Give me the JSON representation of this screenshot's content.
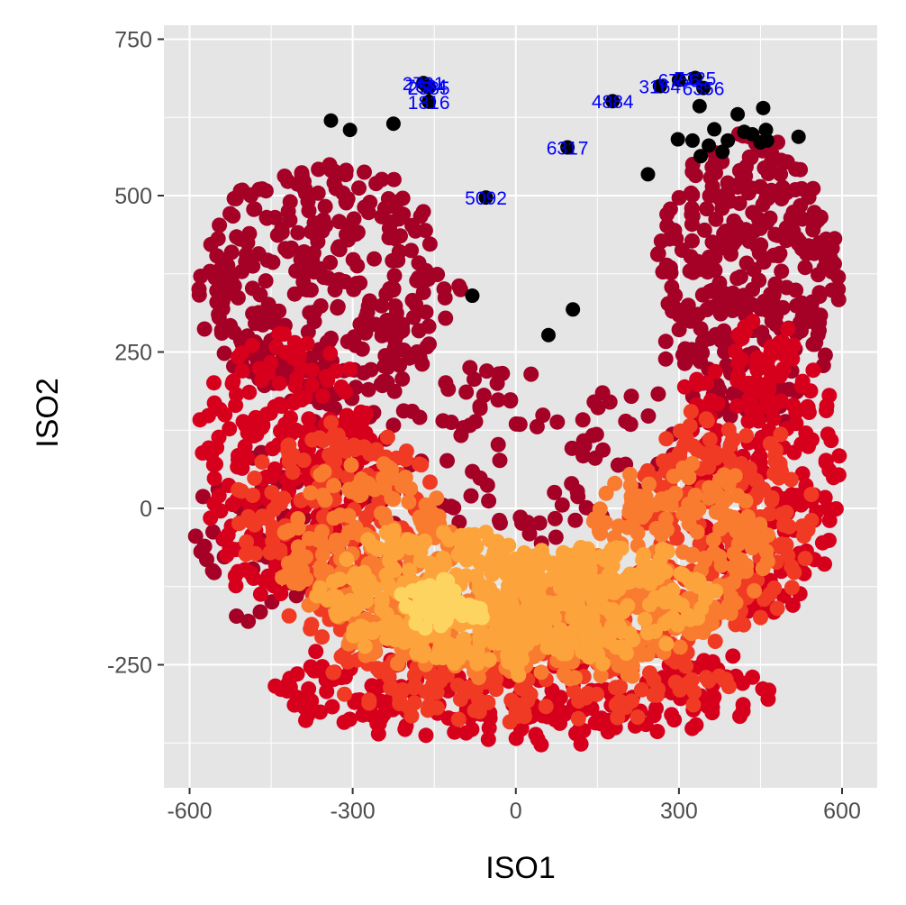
{
  "chart_data": {
    "type": "scatter",
    "title": "",
    "xlabel": "ISO1",
    "ylabel": "ISO2",
    "xlim": [
      -600,
      600
    ],
    "ylim": [
      -250,
      750
    ],
    "x_ticks": [
      "-600",
      "-300",
      "0",
      "300",
      "600"
    ],
    "y_ticks": [
      "-250",
      "0",
      "250",
      "500",
      "750"
    ],
    "x_tick_values": [
      -600,
      -300,
      0,
      300,
      600
    ],
    "y_tick_values": [
      -250,
      0,
      250,
      500,
      750
    ],
    "grid": true,
    "background": "#e5e5e5",
    "density_palette": [
      "#a50026",
      "#d7001c",
      "#f03a23",
      "#f97b30",
      "#fca33b",
      "#fed460"
    ],
    "outlier_color": "#000000",
    "label_color": "#0000ff",
    "density_layers": [
      {
        "color": "#a50026",
        "bands": [
          {
            "cx": -350,
            "cy": 360,
            "rx": 240,
            "ry": 190,
            "n": 330
          },
          {
            "cx": 430,
            "cy": 360,
            "rx": 170,
            "ry": 230,
            "n": 330
          },
          {
            "cx": -40,
            "cy": 90,
            "rx": 380,
            "ry": 140,
            "n": 120
          },
          {
            "cx": -460,
            "cy": -40,
            "rx": 130,
            "ry": 140,
            "n": 50
          }
        ]
      },
      {
        "color": "#d7001c",
        "bands": [
          {
            "cx": -420,
            "cy": 70,
            "rx": 170,
            "ry": 210,
            "n": 240
          },
          {
            "cx": 450,
            "cy": 60,
            "rx": 150,
            "ry": 230,
            "n": 240
          },
          {
            "cx": 0,
            "cy": -290,
            "rx": 470,
            "ry": 80,
            "n": 260
          }
        ]
      },
      {
        "color": "#f03a23",
        "bands": [
          {
            "cx": -330,
            "cy": -30,
            "rx": 190,
            "ry": 170,
            "n": 180
          },
          {
            "cx": 380,
            "cy": -20,
            "rx": 170,
            "ry": 180,
            "n": 180
          },
          {
            "cx": 20,
            "cy": -260,
            "rx": 380,
            "ry": 80,
            "n": 200
          }
        ]
      },
      {
        "color": "#f97b30",
        "bands": [
          {
            "cx": -270,
            "cy": -60,
            "rx": 160,
            "ry": 130,
            "n": 170
          },
          {
            "cx": 300,
            "cy": -60,
            "rx": 170,
            "ry": 130,
            "n": 170
          },
          {
            "cx": 20,
            "cy": -200,
            "rx": 330,
            "ry": 80,
            "n": 200
          }
        ]
      },
      {
        "color": "#fca33b",
        "bands": [
          {
            "cx": -160,
            "cy": -130,
            "rx": 200,
            "ry": 100,
            "n": 220
          },
          {
            "cx": 140,
            "cy": -140,
            "rx": 220,
            "ry": 80,
            "n": 200
          },
          {
            "cx": 0,
            "cy": -210,
            "rx": 230,
            "ry": 40,
            "n": 90
          }
        ]
      },
      {
        "color": "#fed460",
        "bands": [
          {
            "cx": -150,
            "cy": -150,
            "rx": 45,
            "ry": 35,
            "n": 50
          },
          {
            "cx": -110,
            "cy": -165,
            "rx": 50,
            "ry": 20,
            "n": 25
          }
        ]
      }
    ],
    "outliers": [
      {
        "x": -340,
        "y": 620,
        "label": ""
      },
      {
        "x": -305,
        "y": 605,
        "label": ""
      },
      {
        "x": -225,
        "y": 615,
        "label": ""
      },
      {
        "x": -170,
        "y": 680,
        "label": "2731"
      },
      {
        "x": -165,
        "y": 676,
        "label": "7384"
      },
      {
        "x": -160,
        "y": 673,
        "label": "2585"
      },
      {
        "x": -160,
        "y": 650,
        "label": "1816"
      },
      {
        "x": -80,
        "y": 340,
        "label": ""
      },
      {
        "x": -55,
        "y": 497,
        "label": "5092"
      },
      {
        "x": 60,
        "y": 277,
        "label": ""
      },
      {
        "x": 95,
        "y": 577,
        "label": "6317"
      },
      {
        "x": 105,
        "y": 318,
        "label": ""
      },
      {
        "x": 178,
        "y": 651,
        "label": "4884"
      },
      {
        "x": 243,
        "y": 534,
        "label": ""
      },
      {
        "x": 265,
        "y": 675,
        "label": "3164"
      },
      {
        "x": 300,
        "y": 685,
        "label": "6756"
      },
      {
        "x": 330,
        "y": 688,
        "label": "7125"
      },
      {
        "x": 345,
        "y": 672,
        "label": "6356"
      },
      {
        "x": 298,
        "y": 590,
        "label": ""
      },
      {
        "x": 325,
        "y": 588,
        "label": ""
      },
      {
        "x": 338,
        "y": 643,
        "label": ""
      },
      {
        "x": 340,
        "y": 563,
        "label": ""
      },
      {
        "x": 355,
        "y": 580,
        "label": ""
      },
      {
        "x": 365,
        "y": 606,
        "label": ""
      },
      {
        "x": 380,
        "y": 570,
        "label": ""
      },
      {
        "x": 390,
        "y": 588,
        "label": ""
      },
      {
        "x": 408,
        "y": 630,
        "label": ""
      },
      {
        "x": 420,
        "y": 602,
        "label": ""
      },
      {
        "x": 435,
        "y": 598,
        "label": ""
      },
      {
        "x": 450,
        "y": 585,
        "label": ""
      },
      {
        "x": 455,
        "y": 640,
        "label": ""
      },
      {
        "x": 460,
        "y": 605,
        "label": ""
      },
      {
        "x": 462,
        "y": 588,
        "label": ""
      },
      {
        "x": 520,
        "y": 594,
        "label": ""
      }
    ]
  }
}
